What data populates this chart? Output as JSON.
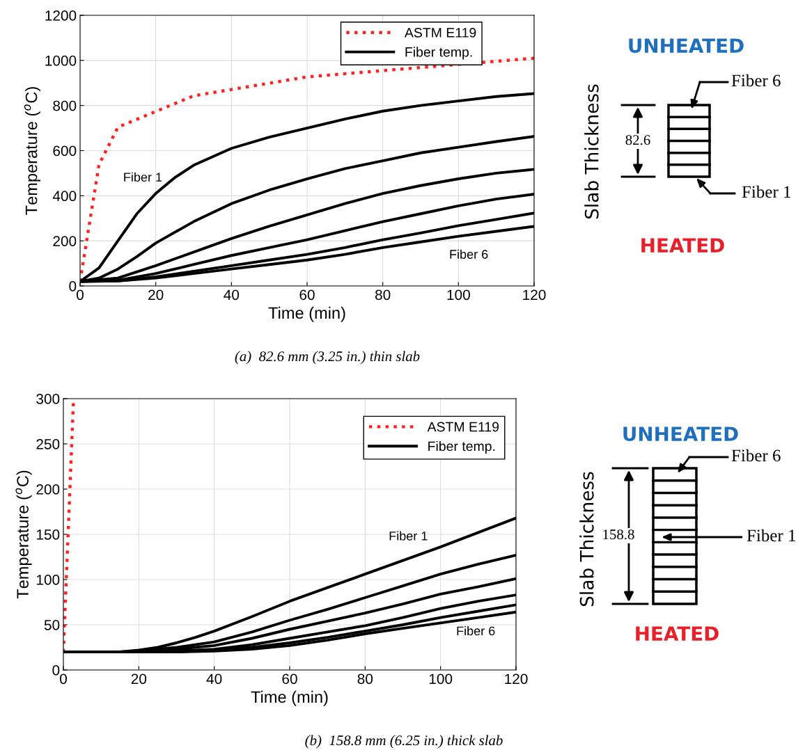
{
  "chart_data": [
    {
      "type": "line",
      "xlabel": "Time (min)",
      "ylabel": "Temperature ($^{o}$C)",
      "xlim": [
        0,
        120
      ],
      "ylim": [
        0,
        1200
      ],
      "xticks": [
        0,
        20,
        40,
        60,
        80,
        100,
        120
      ],
      "yticks": [
        0,
        200,
        400,
        600,
        800,
        1000,
        1200
      ],
      "grid": true,
      "legend": "top right",
      "series": [
        {
          "name": "ASTM E119",
          "color": "#ff2020",
          "line_style": "dotted",
          "x": [
            0,
            5,
            10,
            30,
            60,
            120
          ],
          "values": [
            20,
            538,
            704,
            843,
            927,
            1010
          ]
        },
        {
          "name": "Fiber temp.",
          "color": "#000000",
          "line_style": "solid",
          "x": [
            0,
            5,
            10,
            15,
            20,
            25,
            30,
            40,
            50,
            60,
            70,
            80,
            90,
            100,
            110,
            120
          ],
          "values": [
            20,
            80,
            200,
            320,
            410,
            480,
            535,
            610,
            660,
            700,
            740,
            775,
            800,
            820,
            840,
            853
          ]
        },
        {
          "color": "#000000",
          "line_style": "solid",
          "x": [
            0,
            5,
            10,
            15,
            20,
            30,
            40,
            50,
            60,
            70,
            80,
            90,
            100,
            110,
            120
          ],
          "values": [
            20,
            35,
            75,
            130,
            190,
            285,
            365,
            425,
            475,
            520,
            555,
            590,
            615,
            640,
            663
          ]
        },
        {
          "color": "#000000",
          "line_style": "solid",
          "x": [
            0,
            10,
            20,
            30,
            40,
            50,
            60,
            70,
            80,
            90,
            100,
            110,
            120
          ],
          "values": [
            20,
            35,
            90,
            150,
            210,
            265,
            315,
            365,
            410,
            445,
            475,
            500,
            517
          ]
        },
        {
          "color": "#000000",
          "line_style": "solid",
          "x": [
            0,
            10,
            20,
            30,
            40,
            50,
            60,
            70,
            80,
            90,
            100,
            110,
            120
          ],
          "values": [
            20,
            25,
            55,
            95,
            135,
            170,
            205,
            245,
            285,
            320,
            355,
            385,
            407
          ]
        },
        {
          "color": "#000000",
          "line_style": "solid",
          "x": [
            0,
            10,
            20,
            30,
            40,
            50,
            60,
            70,
            80,
            90,
            100,
            110,
            120
          ],
          "values": [
            20,
            22,
            40,
            65,
            90,
            115,
            140,
            170,
            205,
            235,
            267,
            295,
            323
          ]
        },
        {
          "color": "#000000",
          "line_style": "solid",
          "x": [
            0,
            10,
            20,
            30,
            40,
            50,
            60,
            70,
            80,
            90,
            100,
            110,
            120
          ],
          "values": [
            20,
            22,
            35,
            55,
            75,
            95,
            115,
            140,
            170,
            195,
            220,
            242,
            264
          ]
        }
      ],
      "annotations": [
        "Fiber 1",
        "Fiber 6",
        "(a)  82.6 mm (3.25 in.) thin slab",
        "UNHEATED",
        "Slab Thickness",
        "82.6",
        "Fiber 6",
        "Fiber 1",
        "HEATED"
      ]
    },
    {
      "type": "line",
      "xlabel": "Time (min)",
      "ylabel": "Temperature ($^{o}$C)",
      "xlim": [
        0,
        120
      ],
      "ylim": [
        0,
        300
      ],
      "xticks": [
        0,
        20,
        40,
        60,
        80,
        100,
        120
      ],
      "yticks": [
        0,
        50,
        100,
        150,
        200,
        250,
        300
      ],
      "grid": true,
      "legend": "top right",
      "series": [
        {
          "name": "ASTM E119",
          "color": "#ff2020",
          "line_style": "dotted",
          "x": [
            0,
            2.7
          ],
          "values": [
            20,
            300
          ]
        },
        {
          "name": "Fiber temp.",
          "color": "#000000",
          "line_style": "solid",
          "x": [
            0,
            10,
            15,
            20,
            25,
            30,
            35,
            40,
            50,
            60,
            70,
            80,
            90,
            100,
            110,
            120
          ],
          "values": [
            20,
            20,
            20,
            22,
            25,
            30,
            36,
            43,
            59,
            76,
            91,
            106,
            121,
            136,
            152,
            168
          ]
        },
        {
          "color": "#000000",
          "line_style": "solid",
          "x": [
            0,
            15,
            20,
            30,
            40,
            50,
            60,
            70,
            80,
            90,
            100,
            110,
            120
          ],
          "values": [
            20,
            20,
            21,
            25,
            31,
            42,
            55,
            67,
            80,
            93,
            106,
            117,
            127
          ]
        },
        {
          "color": "#000000",
          "line_style": "solid",
          "x": [
            0,
            20,
            30,
            40,
            50,
            60,
            70,
            80,
            90,
            100,
            110,
            120
          ],
          "values": [
            20,
            20,
            23,
            27,
            35,
            45,
            54,
            63,
            73,
            84,
            92,
            101
          ]
        },
        {
          "color": "#000000",
          "line_style": "solid",
          "x": [
            0,
            20,
            30,
            40,
            50,
            60,
            70,
            80,
            90,
            100,
            110,
            120
          ],
          "values": [
            20,
            20,
            21,
            23,
            28,
            35,
            42,
            49,
            58,
            68,
            76,
            83
          ]
        },
        {
          "color": "#000000",
          "line_style": "solid",
          "x": [
            0,
            30,
            40,
            50,
            60,
            70,
            80,
            90,
            100,
            110,
            120
          ],
          "values": [
            20,
            20,
            22,
            25,
            30,
            36,
            43,
            50,
            58,
            65,
            72
          ]
        },
        {
          "color": "#000000",
          "line_style": "solid",
          "x": [
            0,
            30,
            40,
            50,
            60,
            70,
            80,
            90,
            100,
            110,
            120
          ],
          "values": [
            20,
            20,
            21,
            23,
            27,
            33,
            40,
            46,
            52,
            58,
            64
          ]
        }
      ],
      "annotations": [
        "Fiber 1",
        "Fiber 6",
        "(b)  158.8 mm (6.25 in.) thick slab",
        "UNHEATED",
        "Slab Thickness",
        "158.8",
        "Fiber 6",
        "Fiber 1",
        "HEATED"
      ]
    }
  ]
}
